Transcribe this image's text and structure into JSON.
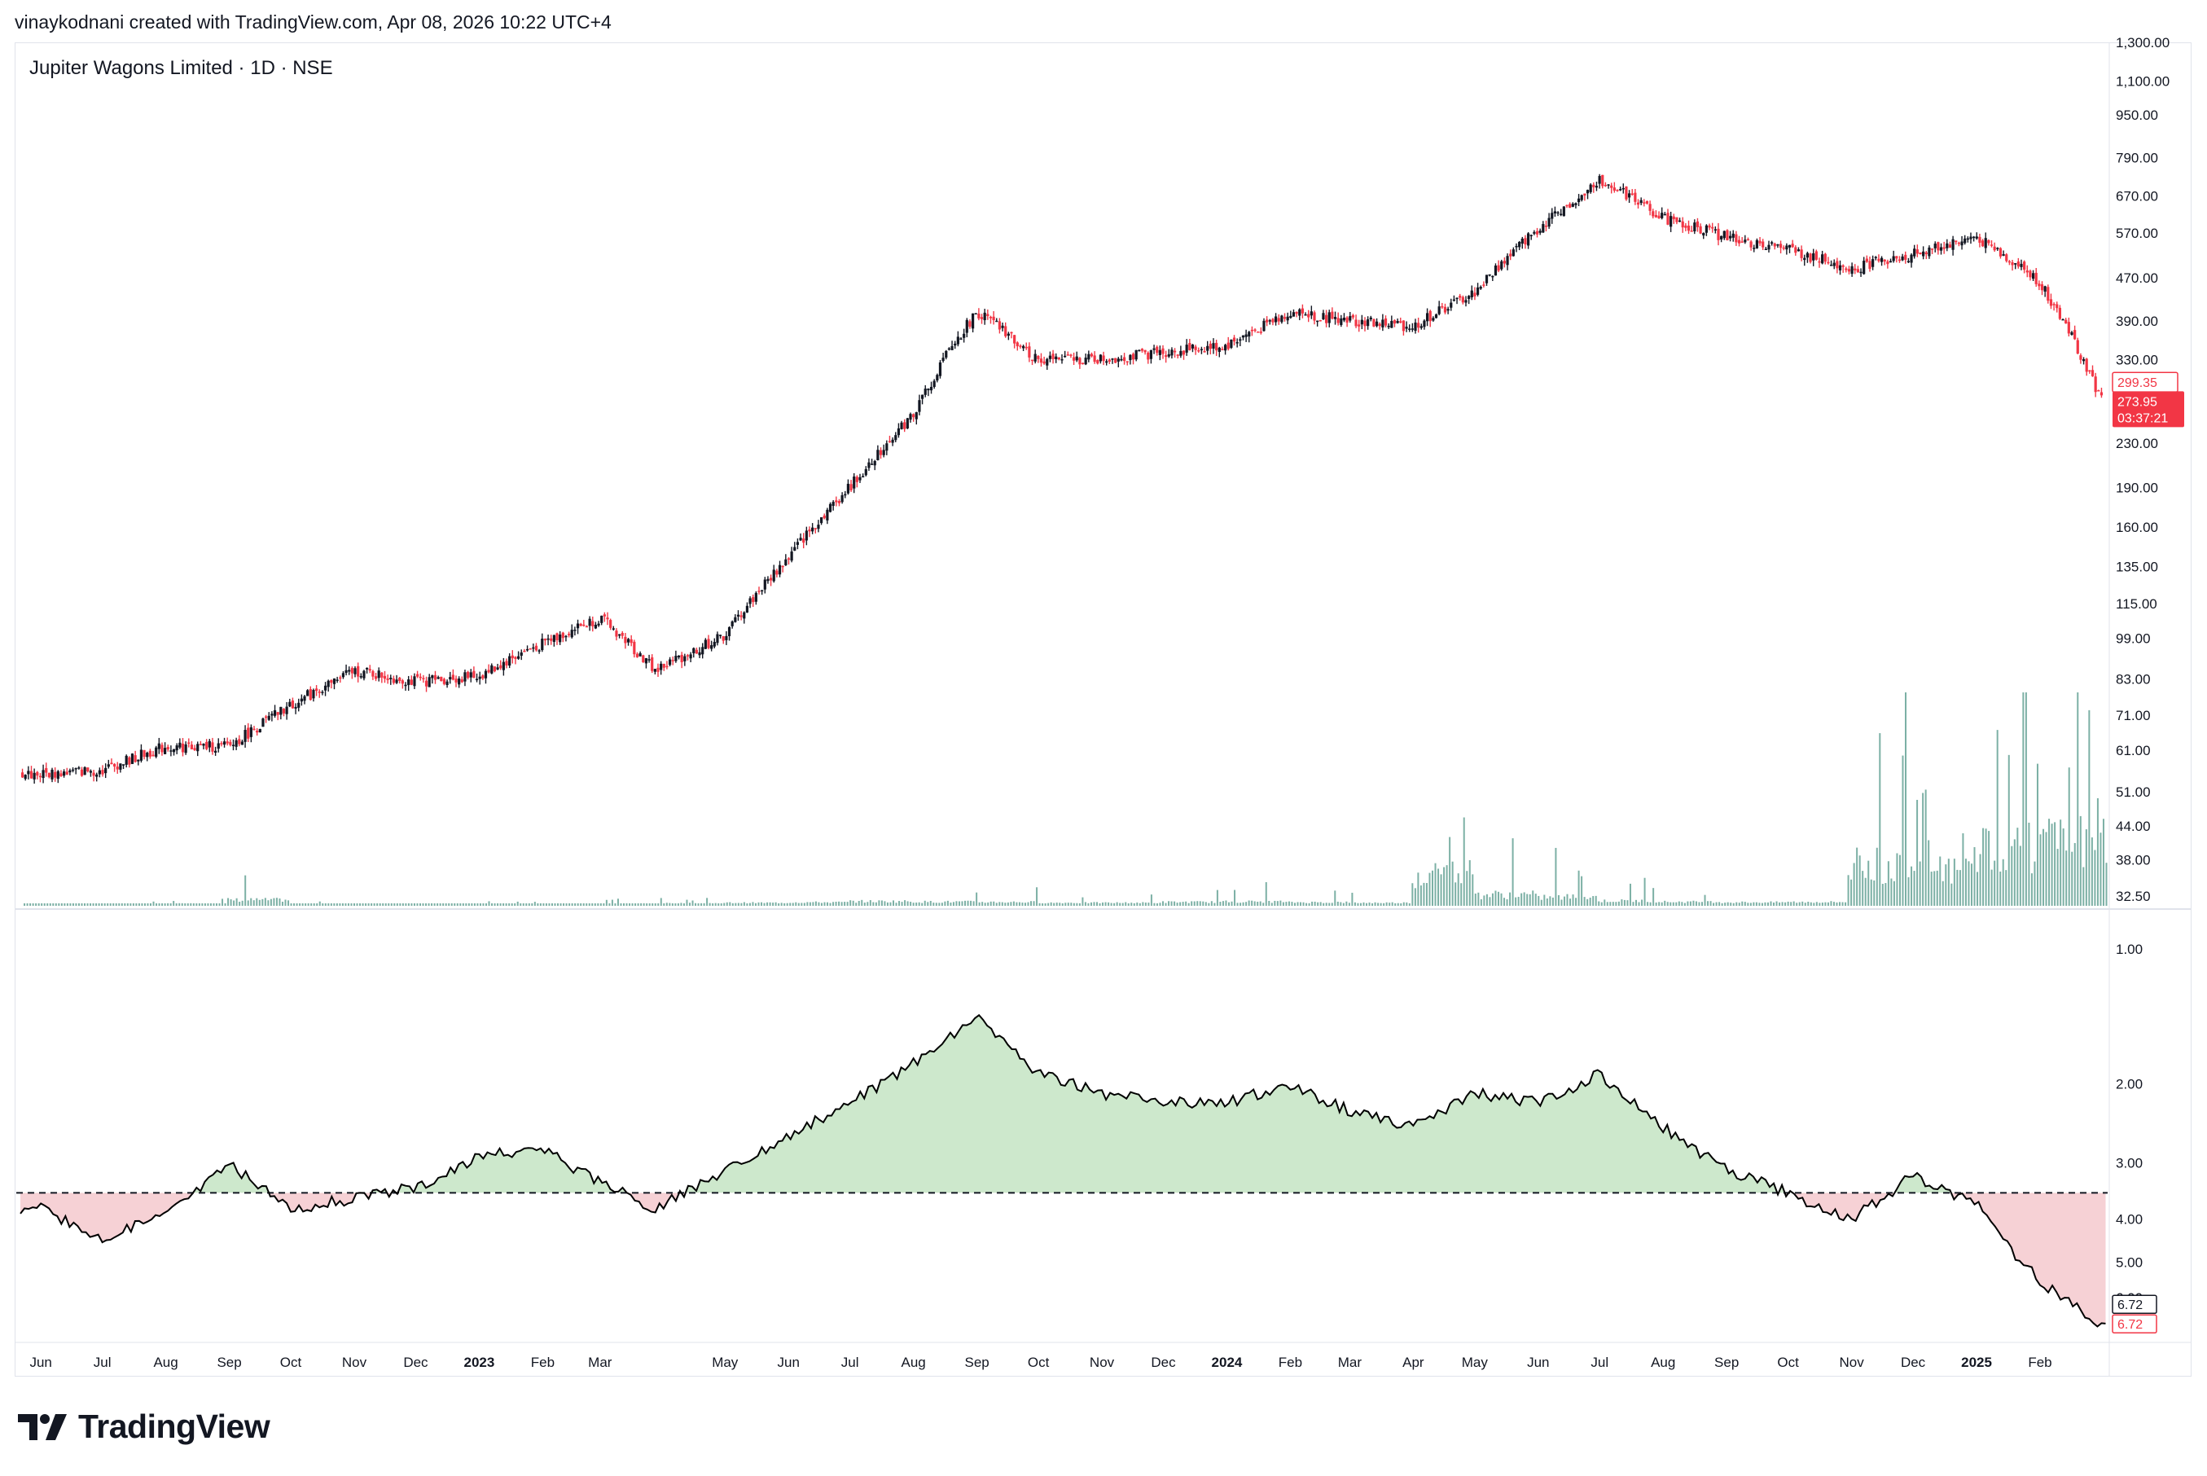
{
  "header": {
    "credit": "vinaykodnani created with TradingView.com, Apr 08, 2026 10:22 UTC+4"
  },
  "symbol": {
    "title": "Jupiter Wagons Limited · 1D · NSE"
  },
  "brand": {
    "name": "TradingView"
  },
  "colors": {
    "up": "#131722",
    "down": "#f23645",
    "volume": "#5b9c8f",
    "ratio_above": "#cde8cc",
    "ratio_below": "#f6d1d5",
    "ratio_line": "#000000",
    "grid_border": "#e0e3eb",
    "price_tag_bg": "#f23645"
  },
  "chart_data": [
    {
      "type": "line",
      "title": "Jupiter Wagons Limited · 1D · NSE",
      "subtype": "candlestick",
      "scale": "log",
      "ylim": [
        32.5,
        1300
      ],
      "y_ticks": [
        "1,300.00",
        "1,100.00",
        "950.00",
        "790.00",
        "670.00",
        "570.00",
        "470.00",
        "390.00",
        "330.00",
        "230.00",
        "190.00",
        "160.00",
        "135.00",
        "115.00",
        "99.00",
        "83.00",
        "71.00",
        "61.00",
        "51.00",
        "44.00",
        "38.00",
        "32.50"
      ],
      "x_labels": [
        "Jun",
        "Jul",
        "Aug",
        "Sep",
        "Oct",
        "Nov",
        "Dec",
        "2023",
        "Feb",
        "Mar",
        "May",
        "Jun",
        "Jul",
        "Aug",
        "Sep",
        "Oct",
        "Nov",
        "Dec",
        "2024",
        "Feb",
        "Mar",
        "Apr",
        "May",
        "Jun",
        "Jul",
        "Aug",
        "Sep",
        "Oct",
        "Nov",
        "Dec",
        "2025",
        "Feb"
      ],
      "x": [
        "2022-06-01",
        "2022-07-01",
        "2022-08-01",
        "2022-09-01",
        "2022-10-01",
        "2022-11-01",
        "2022-12-01",
        "2023-01-01",
        "2023-02-01",
        "2023-03-01",
        "2023-03-28",
        "2023-05-01",
        "2023-06-01",
        "2023-07-01",
        "2023-08-01",
        "2023-09-01",
        "2023-10-01",
        "2023-11-01",
        "2023-12-01",
        "2024-01-01",
        "2024-02-01",
        "2024-03-01",
        "2024-04-01",
        "2024-05-01",
        "2024-06-01",
        "2024-07-01",
        "2024-08-01",
        "2024-09-01",
        "2024-10-01",
        "2024-11-01",
        "2024-12-01",
        "2025-01-01",
        "2025-02-01",
        "2025-03-01"
      ],
      "series": [
        {
          "values": [
            55,
            56,
            62,
            62,
            74,
            86,
            82,
            84,
            97,
            108,
            86,
            100,
            140,
            190,
            260,
            405,
            330,
            330,
            340,
            350,
            405,
            390,
            380,
            440,
            580,
            720,
            610,
            560,
            530,
            490,
            520,
            560,
            460,
            285
          ]
        }
      ],
      "last_value_tag": "299.35",
      "current_price_tag": "273.95",
      "countdown_tag": "03:37:21"
    },
    {
      "type": "bar",
      "title": "",
      "x_labels": [
        "Jun",
        "Jul",
        "Aug",
        "Sep",
        "Oct",
        "Nov",
        "Dec",
        "2023",
        "Feb",
        "Mar",
        "May",
        "Jun",
        "Jul",
        "Aug",
        "Sep",
        "Oct",
        "Nov",
        "Dec",
        "2024",
        "Feb",
        "Mar",
        "Apr",
        "May",
        "Jun",
        "Jul",
        "Aug",
        "Sep",
        "Oct",
        "Nov",
        "Dec",
        "2025",
        "Feb"
      ],
      "series": [
        {
          "name": "",
          "values": [
            1,
            2,
            3,
            18,
            2,
            2,
            2,
            2,
            2,
            3,
            4,
            6,
            8,
            12,
            10,
            9,
            6,
            6,
            9,
            11,
            8,
            6,
            130,
            40,
            30,
            14,
            10,
            8,
            9,
            160,
            140,
            250
          ]
        }
      ]
    },
    {
      "type": "area",
      "title": "",
      "scale": "log",
      "inverted": true,
      "ylim": [
        0.9,
        7.0
      ],
      "y_ticks": [
        "1.00",
        "2.00",
        "3.00",
        "4.00",
        "5.00",
        "6.00",
        "7.00"
      ],
      "baseline": 3.5,
      "x": [
        "2022-06-01",
        "2022-07-01",
        "2022-08-01",
        "2022-09-01",
        "2022-10-01",
        "2022-11-01",
        "2022-12-01",
        "2023-01-01",
        "2023-02-01",
        "2023-03-01",
        "2023-03-28",
        "2023-05-01",
        "2023-06-01",
        "2023-07-01",
        "2023-08-01",
        "2023-09-01",
        "2023-10-01",
        "2023-11-01",
        "2023-12-01",
        "2024-01-01",
        "2024-02-01",
        "2024-03-01",
        "2024-04-01",
        "2024-05-01",
        "2024-06-01",
        "2024-07-01",
        "2024-08-01",
        "2024-09-01",
        "2024-10-01",
        "2024-11-01",
        "2024-12-01",
        "2025-01-01",
        "2025-02-01",
        "2025-03-01"
      ],
      "series": [
        {
          "values": [
            3.8,
            4.4,
            3.9,
            3.0,
            3.8,
            3.6,
            3.4,
            2.9,
            2.8,
            3.3,
            3.8,
            3.1,
            2.6,
            2.2,
            1.8,
            1.4,
            1.9,
            2.1,
            2.2,
            2.2,
            2.0,
            2.3,
            2.5,
            2.1,
            2.2,
            1.9,
            2.5,
            3.1,
            3.5,
            4.0,
            3.2,
            3.7,
            5.5,
            6.8
          ]
        }
      ],
      "last_value_tag_black": "6.72",
      "last_value_tag_red": "6.72"
    }
  ]
}
